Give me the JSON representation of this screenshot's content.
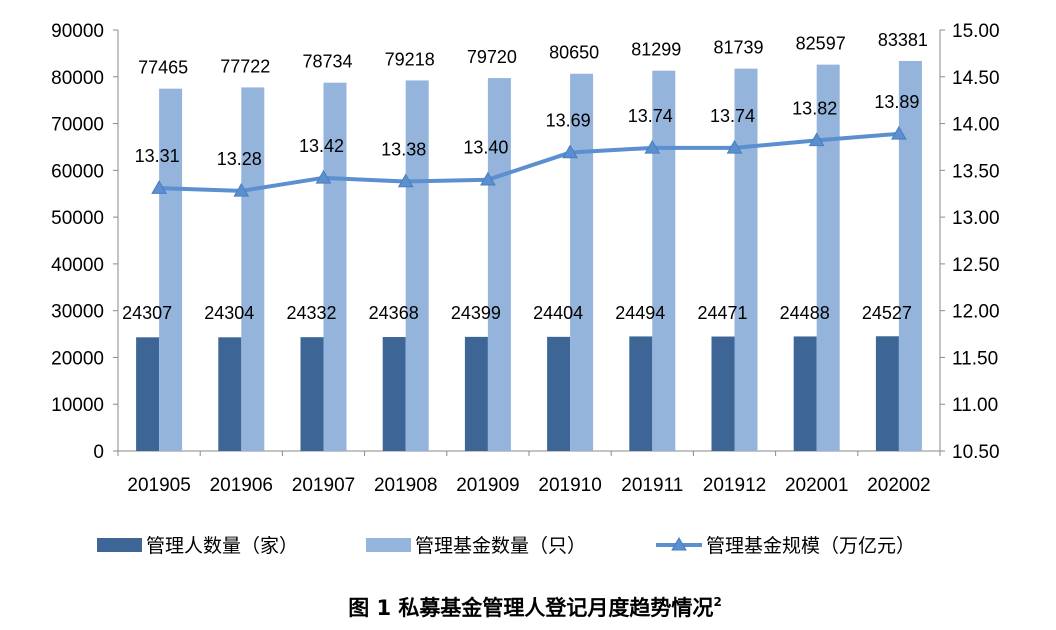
{
  "chart_data": {
    "type": "bar+line",
    "categories": [
      "201905",
      "201906",
      "201907",
      "201908",
      "201909",
      "201910",
      "201911",
      "201912",
      "202001",
      "202002"
    ],
    "series": [
      {
        "name": "管理人数量（家）",
        "type": "bar",
        "axis": "left",
        "color": "#3d6596",
        "values": [
          24307,
          24304,
          24332,
          24368,
          24399,
          24404,
          24494,
          24471,
          24488,
          24527
        ]
      },
      {
        "name": "管理基金数量（只）",
        "type": "bar",
        "axis": "left",
        "color": "#94b4dc",
        "values": [
          77465,
          77722,
          78734,
          79218,
          79720,
          80650,
          81299,
          81739,
          82597,
          83381
        ]
      },
      {
        "name": "管理基金规模（万亿元）",
        "type": "line",
        "axis": "right",
        "color": "#5b8fd0",
        "marker": "triangle",
        "values": [
          13.31,
          13.28,
          13.42,
          13.38,
          13.4,
          13.69,
          13.74,
          13.74,
          13.82,
          13.89
        ],
        "labels": [
          "13.31",
          "13.28",
          "13.42",
          "13.38",
          "13.40",
          "13.69",
          "13.74",
          "13.74",
          "13.82",
          "13.89"
        ]
      }
    ],
    "y_left": {
      "min": 0,
      "max": 90000,
      "ticks": [
        "0",
        "10000",
        "20000",
        "30000",
        "40000",
        "50000",
        "60000",
        "70000",
        "80000",
        "90000"
      ]
    },
    "y_right": {
      "min": 10.5,
      "max": 15.0,
      "ticks": [
        "10.50",
        "11.00",
        "11.50",
        "12.00",
        "12.50",
        "13.00",
        "13.50",
        "14.00",
        "14.50",
        "15.00"
      ]
    },
    "grid": false,
    "legend_position": "bottom",
    "caption": "图 1  私募基金管理人登记月度趋势情况",
    "caption_sup": "2"
  }
}
